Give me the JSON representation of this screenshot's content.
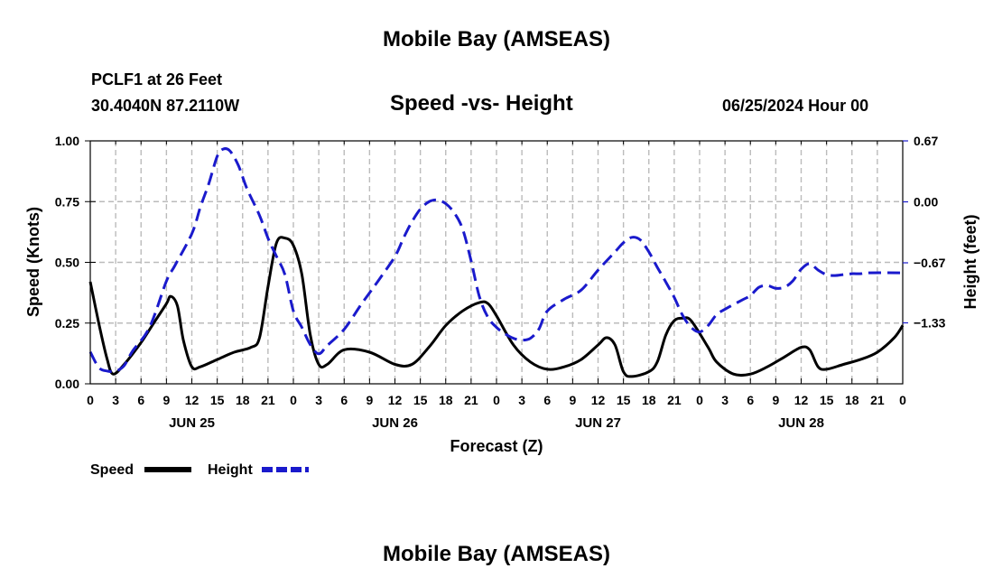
{
  "header": {
    "title": "Mobile Bay (AMSEAS)",
    "station": "PCLF1 at 26 Feet",
    "coords": "30.4040N  87.2110W",
    "subtitle": "Speed -vs- Height",
    "datetime": "06/25/2024 Hour 00"
  },
  "footer": {
    "title": "Mobile Bay (AMSEAS)"
  },
  "colors": {
    "speed": "#000000",
    "height": "#1a1acc",
    "grid": "#bbbbbb"
  },
  "chart_data": {
    "type": "line",
    "title": "Speed -vs- Height",
    "xlabel": "Forecast (Z)",
    "ylabel": "Speed (Knots)",
    "y2label": "Height (feet)",
    "x_unit": "hours since 06/25/2024 00Z",
    "xlim": [
      0,
      96
    ],
    "x_tick_step": 3,
    "x_tick_labels": [
      "0",
      "3",
      "6",
      "9",
      "12",
      "15",
      "18",
      "21",
      "0",
      "3",
      "6",
      "9",
      "12",
      "15",
      "18",
      "21",
      "0",
      "3",
      "6",
      "9",
      "12",
      "15",
      "18",
      "21",
      "0",
      "3",
      "6",
      "9",
      "12",
      "15",
      "18",
      "21",
      "0"
    ],
    "date_labels": [
      {
        "x": 12,
        "label": "JUN 25"
      },
      {
        "x": 36,
        "label": "JUN 26"
      },
      {
        "x": 60,
        "label": "JUN 27"
      },
      {
        "x": 84,
        "label": "JUN 28"
      }
    ],
    "ylim": [
      0,
      1
    ],
    "y_ticks": [
      0,
      0.25,
      0.5,
      0.75,
      1.0
    ],
    "y_tick_labels": [
      "0.00",
      "0.25",
      "0.50",
      "0.75",
      "1.00"
    ],
    "y2lim": [
      -2.0,
      0.67
    ],
    "y2_ticks": [
      0.67,
      0.0,
      -0.67,
      -1.33
    ],
    "y2_tick_labels": [
      "0.67",
      "0.00",
      "−0.67",
      "−1.33"
    ],
    "grid": true,
    "legend_position": "bottom-left",
    "series": [
      {
        "name": "Speed",
        "axis": "left",
        "style": "solid",
        "points": [
          [
            0,
            0.42
          ],
          [
            1,
            0.25
          ],
          [
            2,
            0.1
          ],
          [
            2.7,
            0.04
          ],
          [
            4,
            0.08
          ],
          [
            6,
            0.17
          ],
          [
            7.5,
            0.25
          ],
          [
            9,
            0.33
          ],
          [
            9.5,
            0.36
          ],
          [
            10.3,
            0.32
          ],
          [
            11,
            0.18
          ],
          [
            12,
            0.07
          ],
          [
            13,
            0.07
          ],
          [
            15,
            0.1
          ],
          [
            17,
            0.13
          ],
          [
            19,
            0.15
          ],
          [
            20,
            0.19
          ],
          [
            21,
            0.4
          ],
          [
            22,
            0.58
          ],
          [
            23,
            0.6
          ],
          [
            24,
            0.57
          ],
          [
            25,
            0.45
          ],
          [
            26,
            0.2
          ],
          [
            27,
            0.08
          ],
          [
            28,
            0.08
          ],
          [
            30,
            0.14
          ],
          [
            33,
            0.13
          ],
          [
            36,
            0.08
          ],
          [
            38,
            0.08
          ],
          [
            40,
            0.15
          ],
          [
            42,
            0.24
          ],
          [
            44,
            0.3
          ],
          [
            46,
            0.335
          ],
          [
            47,
            0.33
          ],
          [
            48,
            0.28
          ],
          [
            50,
            0.16
          ],
          [
            52,
            0.09
          ],
          [
            54,
            0.06
          ],
          [
            56,
            0.07
          ],
          [
            58,
            0.1
          ],
          [
            60,
            0.16
          ],
          [
            61,
            0.19
          ],
          [
            62,
            0.16
          ],
          [
            63,
            0.05
          ],
          [
            64,
            0.03
          ],
          [
            66,
            0.05
          ],
          [
            67,
            0.09
          ],
          [
            68,
            0.2
          ],
          [
            69,
            0.26
          ],
          [
            70,
            0.27
          ],
          [
            71,
            0.26
          ],
          [
            73,
            0.15
          ],
          [
            74,
            0.09
          ],
          [
            76,
            0.04
          ],
          [
            78,
            0.04
          ],
          [
            80,
            0.07
          ],
          [
            82,
            0.11
          ],
          [
            84,
            0.15
          ],
          [
            85,
            0.14
          ],
          [
            86,
            0.07
          ],
          [
            87,
            0.06
          ],
          [
            89,
            0.08
          ],
          [
            91,
            0.1
          ],
          [
            93,
            0.13
          ],
          [
            95,
            0.19
          ],
          [
            96,
            0.24
          ]
        ]
      },
      {
        "name": "Height",
        "axis": "right",
        "style": "dashed",
        "points": [
          [
            0,
            -1.65
          ],
          [
            1,
            -1.82
          ],
          [
            2,
            -1.86
          ],
          [
            3,
            -1.86
          ],
          [
            4,
            -1.8
          ],
          [
            5,
            -1.64
          ],
          [
            7,
            -1.38
          ],
          [
            9,
            -0.87
          ],
          [
            10,
            -0.7
          ],
          [
            12,
            -0.35
          ],
          [
            13,
            -0.06
          ],
          [
            14,
            0.2
          ],
          [
            15,
            0.5
          ],
          [
            15.7,
            0.58
          ],
          [
            16.5,
            0.56
          ],
          [
            17.5,
            0.4
          ],
          [
            18.5,
            0.15
          ],
          [
            20,
            -0.15
          ],
          [
            21,
            -0.4
          ],
          [
            22,
            -0.6
          ],
          [
            23,
            -0.8
          ],
          [
            24,
            -1.2
          ],
          [
            25,
            -1.38
          ],
          [
            26,
            -1.57
          ],
          [
            27,
            -1.67
          ],
          [
            28,
            -1.58
          ],
          [
            30,
            -1.4
          ],
          [
            32,
            -1.13
          ],
          [
            34,
            -0.87
          ],
          [
            36,
            -0.6
          ],
          [
            37,
            -0.4
          ],
          [
            38,
            -0.22
          ],
          [
            39,
            -0.08
          ],
          [
            40,
            0.0
          ],
          [
            41,
            0.02
          ],
          [
            42,
            -0.02
          ],
          [
            43,
            -0.12
          ],
          [
            44,
            -0.3
          ],
          [
            45,
            -0.65
          ],
          [
            46,
            -1.05
          ],
          [
            47,
            -1.27
          ],
          [
            48,
            -1.38
          ],
          [
            49,
            -1.45
          ],
          [
            50,
            -1.5
          ],
          [
            51,
            -1.52
          ],
          [
            52,
            -1.5
          ],
          [
            53,
            -1.4
          ],
          [
            54,
            -1.2
          ],
          [
            56,
            -1.07
          ],
          [
            58,
            -0.97
          ],
          [
            60,
            -0.75
          ],
          [
            62,
            -0.55
          ],
          [
            63,
            -0.45
          ],
          [
            64,
            -0.39
          ],
          [
            65,
            -0.42
          ],
          [
            66,
            -0.55
          ],
          [
            67,
            -0.72
          ],
          [
            68,
            -0.88
          ],
          [
            69,
            -1.05
          ],
          [
            70,
            -1.25
          ],
          [
            71,
            -1.38
          ],
          [
            72,
            -1.43
          ],
          [
            73,
            -1.36
          ],
          [
            74,
            -1.24
          ],
          [
            75,
            -1.18
          ],
          [
            77,
            -1.08
          ],
          [
            78,
            -1.03
          ],
          [
            79,
            -0.94
          ],
          [
            80,
            -0.92
          ],
          [
            81,
            -0.95
          ],
          [
            82,
            -0.94
          ],
          [
            83,
            -0.87
          ],
          [
            84,
            -0.74
          ],
          [
            85,
            -0.68
          ],
          [
            86,
            -0.75
          ],
          [
            87,
            -0.8
          ],
          [
            88,
            -0.81
          ],
          [
            89,
            -0.8
          ],
          [
            90,
            -0.79
          ],
          [
            91,
            -0.79
          ],
          [
            92,
            -0.78
          ],
          [
            96,
            -0.78
          ]
        ]
      }
    ]
  }
}
